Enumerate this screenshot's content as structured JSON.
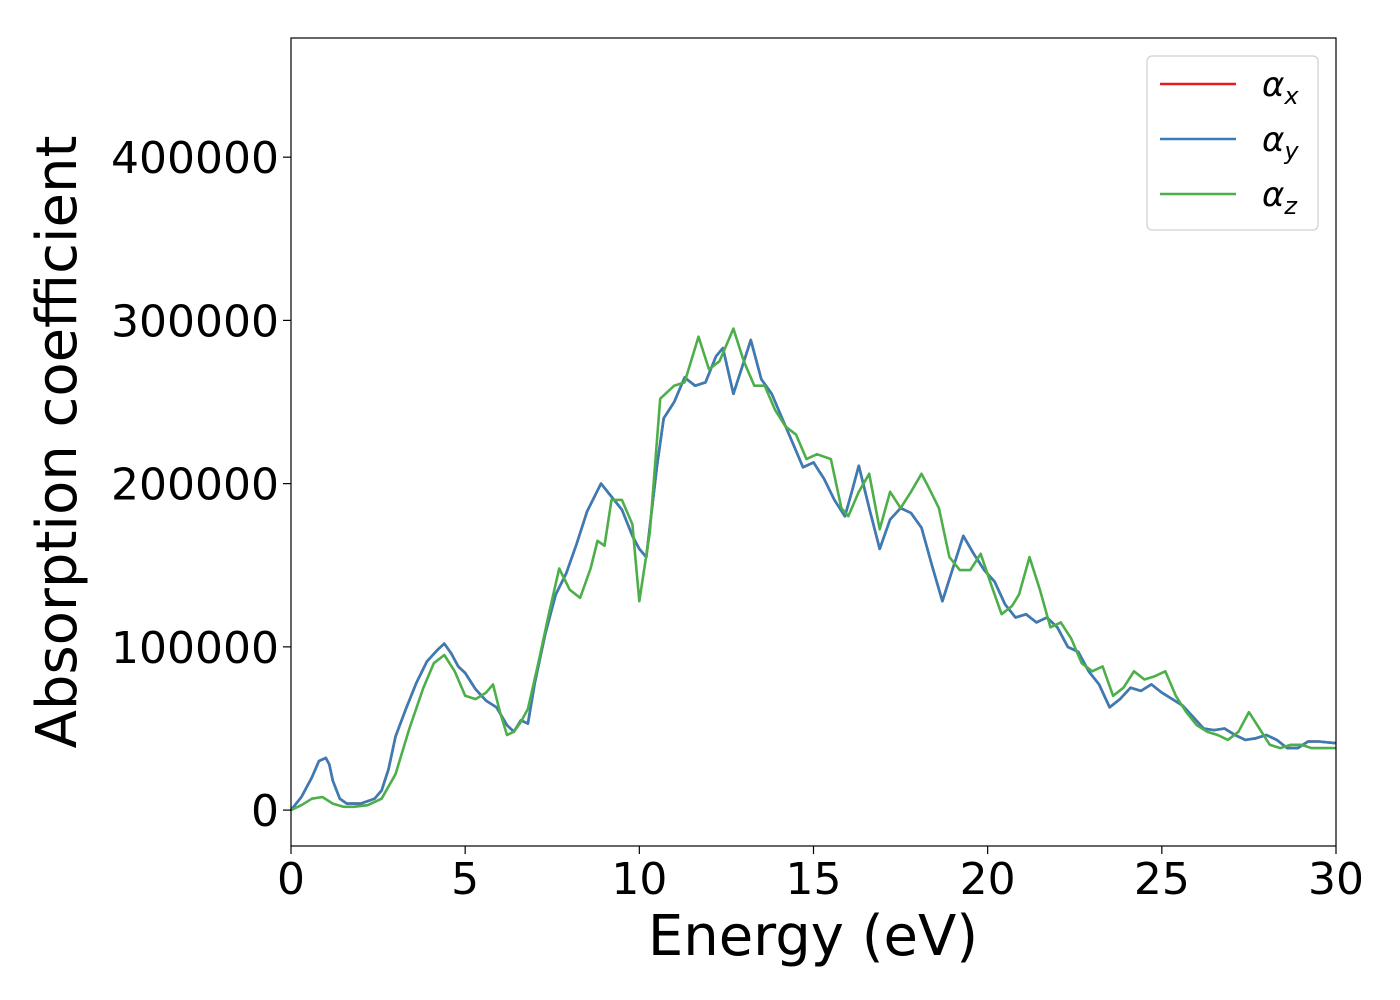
{
  "chart_data": {
    "type": "line",
    "title": "",
    "xlabel": "Energy (eV)",
    "ylabel": "Absorption coefficient",
    "xlim": [
      0,
      30
    ],
    "ylim": [
      -22000,
      473000
    ],
    "xticks": [
      0,
      5,
      10,
      15,
      20,
      25,
      30
    ],
    "xtick_labels": [
      "0",
      "5",
      "10",
      "15",
      "20",
      "25",
      "30"
    ],
    "yticks": [
      0,
      100000,
      200000,
      300000,
      400000
    ],
    "ytick_labels": [
      "0",
      "100000",
      "200000",
      "300000",
      "400000"
    ],
    "grid": false,
    "legend_position": "top-right",
    "series": [
      {
        "name": "α",
        "subscript": "x",
        "color": "#e41a1c",
        "x": [
          0,
          0.3,
          0.6,
          0.8,
          1.0,
          1.1,
          1.2,
          1.4,
          1.6,
          2.0,
          2.4,
          2.6,
          2.8,
          3.0,
          3.3,
          3.6,
          3.9,
          4.2,
          4.4,
          4.6,
          4.8,
          5.0,
          5.3,
          5.6,
          5.9,
          6.2,
          6.4,
          6.6,
          6.8,
          7.0,
          7.3,
          7.6,
          7.9,
          8.2,
          8.5,
          8.9,
          9.2,
          9.5,
          9.8,
          10.0,
          10.2,
          10.5,
          10.7,
          11.0,
          11.3,
          11.6,
          11.9,
          12.2,
          12.4,
          12.7,
          12.9,
          13.2,
          13.5,
          13.8,
          14.1,
          14.4,
          14.7,
          15.0,
          15.3,
          15.6,
          15.9,
          16.1,
          16.3,
          16.6,
          16.9,
          17.2,
          17.5,
          17.8,
          18.1,
          18.4,
          18.7,
          19.0,
          19.3,
          19.6,
          19.9,
          20.2,
          20.5,
          20.8,
          21.1,
          21.4,
          21.7,
          22.0,
          22.3,
          22.6,
          22.9,
          23.2,
          23.5,
          23.8,
          24.1,
          24.4,
          24.7,
          25.0,
          25.3,
          25.6,
          25.9,
          26.2,
          26.5,
          26.8,
          27.1,
          27.4,
          27.7,
          28.0,
          28.3,
          28.6,
          28.9,
          29.2,
          29.5,
          30.0
        ],
        "y": [
          0,
          8000,
          20000,
          30000,
          32000,
          28000,
          18000,
          7000,
          4000,
          4000,
          7000,
          12000,
          25000,
          45000,
          62000,
          78000,
          91000,
          98000,
          102000,
          96000,
          88000,
          84000,
          74000,
          67000,
          63000,
          52000,
          48000,
          55000,
          53000,
          78000,
          108000,
          132000,
          145000,
          163000,
          183000,
          200000,
          192000,
          184000,
          168000,
          160000,
          155000,
          210000,
          240000,
          250000,
          265000,
          260000,
          262000,
          278000,
          283000,
          255000,
          268000,
          288000,
          264000,
          255000,
          240000,
          225000,
          210000,
          213000,
          203000,
          190000,
          180000,
          195000,
          211000,
          185000,
          160000,
          178000,
          185000,
          182000,
          173000,
          150000,
          128000,
          148000,
          168000,
          157000,
          147000,
          140000,
          126000,
          118000,
          120000,
          115000,
          118000,
          112000,
          100000,
          97000,
          85000,
          77000,
          63000,
          68000,
          75000,
          73000,
          77000,
          72000,
          68000,
          64000,
          57000,
          50000,
          49000,
          50000,
          46000,
          43000,
          44000,
          46000,
          43000,
          38000,
          38000,
          42000,
          42000,
          41000
        ]
      },
      {
        "name": "α",
        "subscript": "y",
        "color": "#377eb8",
        "x": [
          0,
          0.3,
          0.6,
          0.8,
          1.0,
          1.1,
          1.2,
          1.4,
          1.6,
          2.0,
          2.4,
          2.6,
          2.8,
          3.0,
          3.3,
          3.6,
          3.9,
          4.2,
          4.4,
          4.6,
          4.8,
          5.0,
          5.3,
          5.6,
          5.9,
          6.2,
          6.4,
          6.6,
          6.8,
          7.0,
          7.3,
          7.6,
          7.9,
          8.2,
          8.5,
          8.9,
          9.2,
          9.5,
          9.8,
          10.0,
          10.2,
          10.5,
          10.7,
          11.0,
          11.3,
          11.6,
          11.9,
          12.2,
          12.4,
          12.7,
          12.9,
          13.2,
          13.5,
          13.8,
          14.1,
          14.4,
          14.7,
          15.0,
          15.3,
          15.6,
          15.9,
          16.1,
          16.3,
          16.6,
          16.9,
          17.2,
          17.5,
          17.8,
          18.1,
          18.4,
          18.7,
          19.0,
          19.3,
          19.6,
          19.9,
          20.2,
          20.5,
          20.8,
          21.1,
          21.4,
          21.7,
          22.0,
          22.3,
          22.6,
          22.9,
          23.2,
          23.5,
          23.8,
          24.1,
          24.4,
          24.7,
          25.0,
          25.3,
          25.6,
          25.9,
          26.2,
          26.5,
          26.8,
          27.1,
          27.4,
          27.7,
          28.0,
          28.3,
          28.6,
          28.9,
          29.2,
          29.5,
          30.0
        ],
        "y": [
          0,
          8000,
          20000,
          30000,
          32000,
          28000,
          18000,
          7000,
          4000,
          4000,
          7000,
          12000,
          25000,
          45000,
          62000,
          78000,
          91000,
          98000,
          102000,
          96000,
          88000,
          84000,
          74000,
          67000,
          63000,
          52000,
          48000,
          55000,
          53000,
          78000,
          108000,
          132000,
          145000,
          163000,
          183000,
          200000,
          192000,
          184000,
          168000,
          160000,
          155000,
          210000,
          240000,
          250000,
          265000,
          260000,
          262000,
          278000,
          283000,
          255000,
          268000,
          288000,
          264000,
          255000,
          240000,
          225000,
          210000,
          213000,
          203000,
          190000,
          180000,
          195000,
          211000,
          185000,
          160000,
          178000,
          185000,
          182000,
          173000,
          150000,
          128000,
          148000,
          168000,
          157000,
          147000,
          140000,
          126000,
          118000,
          120000,
          115000,
          118000,
          112000,
          100000,
          97000,
          85000,
          77000,
          63000,
          68000,
          75000,
          73000,
          77000,
          72000,
          68000,
          64000,
          57000,
          50000,
          49000,
          50000,
          46000,
          43000,
          44000,
          46000,
          43000,
          38000,
          38000,
          42000,
          42000,
          41000
        ]
      },
      {
        "name": "α",
        "subscript": "z",
        "color": "#4daf4a",
        "x": [
          0,
          0.3,
          0.6,
          0.9,
          1.2,
          1.5,
          1.8,
          2.2,
          2.6,
          3.0,
          3.4,
          3.8,
          4.1,
          4.4,
          4.7,
          5.0,
          5.3,
          5.6,
          5.8,
          6.0,
          6.2,
          6.4,
          6.6,
          6.8,
          7.1,
          7.4,
          7.7,
          8.0,
          8.3,
          8.6,
          8.8,
          9.0,
          9.2,
          9.5,
          9.8,
          10.0,
          10.3,
          10.6,
          11.0,
          11.3,
          11.7,
          12.0,
          12.3,
          12.7,
          13.0,
          13.3,
          13.6,
          13.9,
          14.2,
          14.5,
          14.8,
          15.1,
          15.5,
          15.8,
          16.0,
          16.3,
          16.6,
          16.9,
          17.2,
          17.5,
          17.8,
          18.1,
          18.3,
          18.6,
          18.9,
          19.2,
          19.5,
          19.8,
          20.1,
          20.4,
          20.7,
          20.9,
          21.2,
          21.5,
          21.8,
          22.1,
          22.4,
          22.7,
          23.0,
          23.3,
          23.6,
          23.9,
          24.2,
          24.5,
          24.8,
          25.1,
          25.4,
          25.7,
          26.0,
          26.3,
          26.6,
          26.9,
          27.2,
          27.5,
          27.8,
          28.1,
          28.4,
          28.7,
          29.0,
          29.3,
          30.0
        ],
        "y": [
          0,
          3000,
          7000,
          8000,
          4000,
          2000,
          2000,
          3000,
          7000,
          22000,
          50000,
          75000,
          90000,
          95000,
          85000,
          70000,
          68000,
          72000,
          77000,
          60000,
          46000,
          48000,
          54000,
          62000,
          90000,
          120000,
          148000,
          135000,
          130000,
          148000,
          165000,
          162000,
          190000,
          190000,
          175000,
          128000,
          170000,
          252000,
          260000,
          262000,
          290000,
          270000,
          275000,
          295000,
          275000,
          260000,
          260000,
          245000,
          235000,
          230000,
          215000,
          218000,
          215000,
          185000,
          180000,
          195000,
          206000,
          172000,
          195000,
          185000,
          195000,
          206000,
          198000,
          185000,
          155000,
          147000,
          147000,
          157000,
          138000,
          120000,
          125000,
          132000,
          155000,
          135000,
          112000,
          115000,
          105000,
          90000,
          85000,
          88000,
          70000,
          75000,
          85000,
          80000,
          82000,
          85000,
          70000,
          60000,
          52000,
          48000,
          46000,
          43000,
          48000,
          60000,
          50000,
          40000,
          38000,
          40000,
          40000,
          38000,
          38000
        ]
      }
    ]
  }
}
